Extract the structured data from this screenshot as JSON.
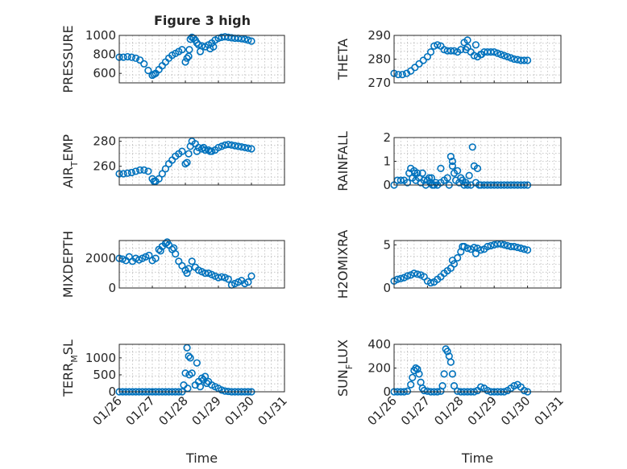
{
  "figure_title": "Figure 3 high",
  "colors": {
    "marker": "#0072bd",
    "axis": "#262626",
    "grid": "#bcbcbc",
    "background": "#ffffff"
  },
  "chart_data": [
    {
      "type": "scatter",
      "ylabel": "PRESSURE",
      "ylabel_sub": "",
      "ylim": [
        500,
        1000
      ],
      "yticks": [
        600,
        800,
        1000
      ],
      "xlim": [
        0,
        5
      ],
      "xticks": [
        0,
        1,
        2,
        3,
        4,
        5
      ],
      "xticklabels": [
        "01/26",
        "01/27",
        "01/28",
        "01/29",
        "01/30",
        "01/31"
      ],
      "show_xticklabels": false,
      "xlabel": "",
      "x": [
        0,
        0.125,
        0.25,
        0.375,
        0.5,
        0.625,
        0.75,
        0.875,
        1,
        1.05,
        1.1,
        1.2,
        1.3,
        1.4,
        1.5,
        1.6,
        1.7,
        1.8,
        1.9,
        2,
        2.1,
        2.15,
        2.2,
        2.25,
        2.3,
        2.35,
        2.4,
        2.5,
        2.6,
        2.7,
        2.8,
        2.9,
        3,
        3.1,
        3.2,
        3.3,
        3.4,
        3.5,
        3.6,
        3.7,
        3.8,
        3.9,
        4,
        2.05,
        2.12,
        2.45,
        2.75,
        2.85
      ],
      "y": [
        770,
        770,
        775,
        770,
        760,
        740,
        700,
        630,
        580,
        590,
        600,
        640,
        680,
        720,
        760,
        790,
        810,
        830,
        850,
        720,
        780,
        960,
        980,
        970,
        950,
        920,
        900,
        890,
        880,
        900,
        920,
        950,
        970,
        980,
        985,
        980,
        975,
        970,
        970,
        965,
        960,
        950,
        940,
        760,
        850,
        830,
        860,
        880
      ]
    },
    {
      "type": "scatter",
      "ylabel": "THETA",
      "ylabel_sub": "",
      "ylim": [
        270,
        290
      ],
      "yticks": [
        270,
        280,
        290
      ],
      "xlim": [
        0,
        5
      ],
      "xticks": [
        0,
        1,
        2,
        3,
        4,
        5
      ],
      "xticklabels": [
        "01/26",
        "01/27",
        "01/28",
        "01/29",
        "01/30",
        "01/31"
      ],
      "show_xticklabels": false,
      "xlabel": "",
      "x": [
        0,
        0.125,
        0.25,
        0.375,
        0.5,
        0.625,
        0.75,
        0.875,
        1,
        1.1,
        1.2,
        1.3,
        1.4,
        1.5,
        1.6,
        1.7,
        1.8,
        1.9,
        2,
        2.1,
        2.2,
        2.3,
        2.4,
        2.5,
        2.6,
        2.7,
        2.8,
        2.9,
        3,
        3.1,
        3.2,
        3.3,
        3.4,
        3.5,
        3.6,
        3.7,
        3.8,
        3.9,
        4,
        2.2,
        2.45,
        2.15,
        2.62
      ],
      "y": [
        274,
        273.5,
        273.5,
        274,
        275,
        276.5,
        278,
        279.5,
        281,
        283,
        285.5,
        286,
        285.5,
        284,
        283.5,
        283.5,
        283.5,
        283,
        284,
        287,
        285,
        283,
        281.5,
        281,
        282,
        283,
        283,
        283,
        283,
        282.5,
        282,
        281.5,
        281,
        280.5,
        280,
        279.8,
        279.5,
        279.5,
        279.5,
        288,
        286,
        284,
        282
      ]
    },
    {
      "type": "scatter",
      "ylabel": "AIR",
      "ylabel_sub": "T",
      "ylabel_tail": "EMP",
      "ylim": [
        245,
        283
      ],
      "yticks": [
        260,
        280
      ],
      "xlim": [
        0,
        5
      ],
      "xticks": [
        0,
        1,
        2,
        3,
        4,
        5
      ],
      "xticklabels": [
        "01/26",
        "01/27",
        "01/28",
        "01/29",
        "01/30",
        "01/31"
      ],
      "show_xticklabels": false,
      "xlabel": "",
      "x": [
        0,
        0.125,
        0.25,
        0.375,
        0.5,
        0.625,
        0.75,
        0.875,
        1,
        1.05,
        1.1,
        1.2,
        1.3,
        1.4,
        1.5,
        1.6,
        1.7,
        1.8,
        1.9,
        2,
        2.05,
        2.1,
        2.15,
        2.2,
        2.3,
        2.4,
        2.5,
        2.6,
        2.7,
        2.8,
        2.9,
        3,
        3.1,
        3.2,
        3.3,
        3.4,
        3.5,
        3.6,
        3.7,
        3.8,
        3.9,
        4,
        2.35,
        2.55,
        2.75
      ],
      "y": [
        254,
        254,
        254.5,
        255,
        256,
        257,
        257,
        256,
        250,
        248,
        248,
        250,
        254,
        258,
        262,
        265,
        268,
        270,
        272,
        262,
        263,
        270,
        276,
        280,
        278,
        275,
        274,
        273,
        273,
        272,
        273,
        275,
        276,
        277,
        277.5,
        277,
        276.5,
        276,
        275.5,
        275,
        274.5,
        274,
        272,
        275,
        272
      ]
    },
    {
      "type": "scatter",
      "ylabel": "RAINFALL",
      "ylabel_sub": "",
      "ylim": [
        0,
        2
      ],
      "yticks": [
        0,
        1,
        2
      ],
      "xlim": [
        0,
        5
      ],
      "xticks": [
        0,
        1,
        2,
        3,
        4,
        5
      ],
      "xticklabels": [
        "01/26",
        "01/27",
        "01/28",
        "01/29",
        "01/30",
        "01/31"
      ],
      "show_xticklabels": false,
      "xlabel": "",
      "x": [
        0,
        0.1,
        0.2,
        0.3,
        0.4,
        0.45,
        0.5,
        0.55,
        0.6,
        0.65,
        0.7,
        0.75,
        0.8,
        0.85,
        0.9,
        0.95,
        1,
        1.05,
        1.1,
        1.15,
        1.2,
        1.25,
        1.3,
        1.4,
        1.5,
        1.6,
        1.65,
        1.7,
        1.75,
        1.8,
        1.85,
        1.9,
        1.95,
        2,
        2.05,
        2.1,
        2.15,
        2.2,
        2.25,
        2.3,
        2.35,
        2.4,
        2.45,
        2.5,
        2.55,
        2.6,
        2.7,
        2.8,
        2.9,
        3,
        3.1,
        3.2,
        3.3,
        3.4,
        3.5,
        3.6,
        3.7,
        3.8,
        3.9,
        4,
        0.62,
        1.4,
        1.12,
        1.75
      ],
      "y": [
        0,
        0.2,
        0.2,
        0.2,
        0.1,
        0.5,
        0.7,
        0.3,
        0.6,
        0.2,
        0.5,
        0.3,
        0.1,
        0.5,
        0.2,
        0,
        0.2,
        0.3,
        0.1,
        0,
        0,
        0.1,
        0,
        0.1,
        0.2,
        0.3,
        0,
        1.2,
        1.0,
        0.5,
        0.2,
        0.6,
        0.1,
        0.3,
        0.2,
        0,
        0.1,
        0,
        0.4,
        0,
        1.6,
        0.8,
        0.1,
        0.7,
        0,
        0,
        0,
        0,
        0,
        0,
        0,
        0,
        0,
        0,
        0,
        0,
        0,
        0,
        0,
        0,
        0.5,
        0.7,
        0.3,
        0.8
      ]
    },
    {
      "type": "scatter",
      "ylabel": "MIXDEPTH",
      "ylabel_sub": "",
      "ylim": [
        0,
        3200
      ],
      "yticks": [
        0,
        2000
      ],
      "xlim": [
        0,
        5
      ],
      "xticks": [
        0,
        1,
        2,
        3,
        4,
        5
      ],
      "xticklabels": [
        "01/26",
        "01/27",
        "01/28",
        "01/29",
        "01/30",
        "01/31"
      ],
      "show_xticklabels": false,
      "xlabel": "",
      "x": [
        0,
        0.1,
        0.2,
        0.3,
        0.4,
        0.5,
        0.6,
        0.7,
        0.8,
        0.9,
        1,
        1.1,
        1.2,
        1.3,
        1.4,
        1.5,
        1.6,
        1.7,
        1.8,
        1.9,
        2,
        2.1,
        2.2,
        2.3,
        2.4,
        2.5,
        2.6,
        2.7,
        2.8,
        2.9,
        3,
        3.1,
        3.2,
        3.3,
        3.4,
        3.5,
        3.6,
        3.7,
        3.8,
        3.9,
        4,
        1.25,
        1.45,
        1.65,
        2.05
      ],
      "y": [
        2000,
        1950,
        1850,
        2100,
        1800,
        2000,
        1900,
        2000,
        2100,
        2200,
        1850,
        2000,
        2600,
        2800,
        3000,
        2900,
        2600,
        2300,
        1800,
        1500,
        1200,
        1300,
        1800,
        1400,
        1200,
        1100,
        1000,
        1000,
        900,
        800,
        700,
        750,
        700,
        600,
        200,
        300,
        400,
        500,
        300,
        400,
        800,
        2500,
        3100,
        2700,
        1000
      ]
    },
    {
      "type": "scatter",
      "ylabel": "H2OMIXRA",
      "ylabel_sub": "",
      "ylim": [
        0,
        5.5
      ],
      "yticks": [
        0,
        5
      ],
      "xlim": [
        0,
        5
      ],
      "xticks": [
        0,
        1,
        2,
        3,
        4,
        5
      ],
      "xticklabels": [
        "01/26",
        "01/27",
        "01/28",
        "01/29",
        "01/30",
        "01/31"
      ],
      "show_xticklabels": false,
      "xlabel": "",
      "x": [
        0,
        0.1,
        0.2,
        0.3,
        0.4,
        0.5,
        0.6,
        0.7,
        0.8,
        0.9,
        1,
        1.1,
        1.2,
        1.3,
        1.4,
        1.5,
        1.6,
        1.7,
        1.8,
        1.9,
        2,
        2.1,
        2.2,
        2.3,
        2.4,
        2.5,
        2.6,
        2.7,
        2.8,
        2.9,
        3,
        3.1,
        3.2,
        3.3,
        3.4,
        3.5,
        3.6,
        3.7,
        3.8,
        3.9,
        4,
        1.75,
        2.05,
        2.45
      ],
      "y": [
        0.8,
        1.0,
        1.1,
        1.2,
        1.4,
        1.5,
        1.7,
        1.6,
        1.5,
        1.3,
        0.8,
        0.6,
        0.7,
        1.0,
        1.3,
        1.7,
        2.0,
        2.3,
        2.8,
        3.5,
        4.2,
        4.8,
        4.6,
        4.5,
        4.7,
        4.6,
        4.4,
        4.5,
        4.8,
        4.9,
        5.0,
        5.1,
        5.1,
        5.0,
        4.9,
        4.8,
        4.8,
        4.7,
        4.6,
        4.5,
        4.4,
        3.2,
        4.8,
        4.0
      ]
    },
    {
      "type": "scatter",
      "ylabel": "TERR",
      "ylabel_sub": "M",
      "ylabel_tail": "SL",
      "ylim": [
        0,
        1400
      ],
      "yticks": [
        0,
        500,
        1000
      ],
      "xlim": [
        0,
        5
      ],
      "xticks": [
        0,
        1,
        2,
        3,
        4,
        5
      ],
      "xticklabels": [
        "01/26",
        "01/27",
        "01/28",
        "01/29",
        "01/30",
        "01/31"
      ],
      "show_xticklabels": true,
      "xlabel": "Time",
      "x": [
        0,
        0.1,
        0.2,
        0.3,
        0.4,
        0.5,
        0.6,
        0.7,
        0.8,
        0.9,
        1,
        1.1,
        1.2,
        1.3,
        1.4,
        1.5,
        1.6,
        1.7,
        1.8,
        1.9,
        2,
        2.05,
        2.1,
        2.15,
        2.2,
        2.3,
        2.4,
        2.5,
        2.6,
        2.7,
        2.8,
        2.9,
        3,
        3.1,
        3.2,
        3.3,
        3.4,
        3.5,
        3.6,
        3.7,
        3.8,
        3.9,
        4,
        1.95,
        2.07,
        2.12,
        2.35,
        2.45,
        2.55,
        2.65
      ],
      "y": [
        0,
        0,
        0,
        0,
        0,
        0,
        0,
        0,
        0,
        0,
        0,
        0,
        0,
        0,
        0,
        0,
        0,
        0,
        0,
        0,
        550,
        1300,
        1050,
        1000,
        550,
        200,
        300,
        400,
        450,
        300,
        200,
        150,
        100,
        50,
        20,
        10,
        0,
        0,
        0,
        0,
        0,
        0,
        0,
        200,
        100,
        500,
        850,
        150,
        350,
        250
      ]
    },
    {
      "type": "scatter",
      "ylabel": "SUN",
      "ylabel_sub": "F",
      "ylabel_tail": "LUX",
      "ylim": [
        0,
        400
      ],
      "yticks": [
        0,
        200,
        400
      ],
      "xlim": [
        0,
        5
      ],
      "xticks": [
        0,
        1,
        2,
        3,
        4,
        5
      ],
      "xticklabels": [
        "01/26",
        "01/27",
        "01/28",
        "01/29",
        "01/30",
        "01/31"
      ],
      "show_xticklabels": true,
      "xlabel": "Time",
      "x": [
        0,
        0.1,
        0.2,
        0.3,
        0.4,
        0.5,
        0.55,
        0.6,
        0.65,
        0.7,
        0.75,
        0.8,
        0.85,
        0.9,
        1,
        1.1,
        1.2,
        1.3,
        1.4,
        1.45,
        1.5,
        1.55,
        1.6,
        1.65,
        1.7,
        1.75,
        1.8,
        1.9,
        2,
        2.1,
        2.2,
        2.3,
        2.4,
        2.5,
        2.6,
        2.7,
        2.8,
        2.9,
        3,
        3.1,
        3.2,
        3.3,
        3.4,
        3.5,
        3.6,
        3.7,
        3.8,
        3.9,
        4
      ],
      "y": [
        0,
        0,
        0,
        0,
        5,
        60,
        120,
        180,
        200,
        190,
        150,
        80,
        30,
        10,
        5,
        0,
        0,
        0,
        5,
        50,
        150,
        360,
        340,
        300,
        250,
        150,
        50,
        5,
        0,
        0,
        0,
        0,
        0,
        10,
        40,
        30,
        10,
        0,
        0,
        0,
        0,
        0,
        10,
        30,
        50,
        60,
        40,
        10,
        0
      ]
    }
  ]
}
